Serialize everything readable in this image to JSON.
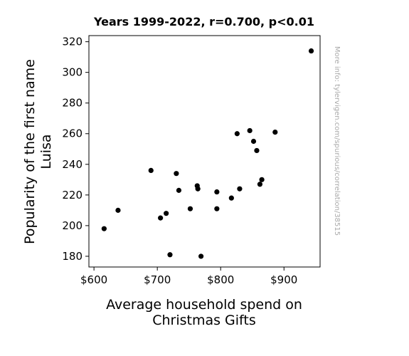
{
  "chart_data": {
    "type": "scatter",
    "title": "Years 1999-2022, r=0.700, p<0.01",
    "xlabel_lines": [
      "Average household spend on",
      "Christmas Gifts"
    ],
    "ylabel_lines": [
      "Popularity of the first name",
      "Luisa"
    ],
    "side_note": "More info: tylervigen.com/spurious/correlation/38515",
    "xlim": [
      592,
      957
    ],
    "ylim": [
      173,
      324
    ],
    "xticks": [
      600,
      700,
      800,
      900
    ],
    "xtick_labels": [
      "$600",
      "$700",
      "$800",
      "$900"
    ],
    "yticks": [
      180,
      200,
      220,
      240,
      260,
      280,
      300,
      320
    ],
    "ytick_labels": [
      "180",
      "200",
      "220",
      "240",
      "260",
      "280",
      "300",
      "320"
    ],
    "grid": false,
    "point_color": "#000000",
    "points": [
      {
        "x": 616,
        "y": 198
      },
      {
        "x": 638,
        "y": 210
      },
      {
        "x": 690,
        "y": 236
      },
      {
        "x": 705,
        "y": 205
      },
      {
        "x": 714,
        "y": 208
      },
      {
        "x": 720,
        "y": 181
      },
      {
        "x": 730,
        "y": 234
      },
      {
        "x": 734,
        "y": 223
      },
      {
        "x": 752,
        "y": 211
      },
      {
        "x": 763,
        "y": 226
      },
      {
        "x": 764,
        "y": 224
      },
      {
        "x": 769,
        "y": 180
      },
      {
        "x": 794,
        "y": 222
      },
      {
        "x": 794,
        "y": 211
      },
      {
        "x": 817,
        "y": 218
      },
      {
        "x": 826,
        "y": 260
      },
      {
        "x": 830,
        "y": 224
      },
      {
        "x": 846,
        "y": 262
      },
      {
        "x": 852,
        "y": 255
      },
      {
        "x": 857,
        "y": 249
      },
      {
        "x": 862,
        "y": 227
      },
      {
        "x": 865,
        "y": 230
      },
      {
        "x": 886,
        "y": 261
      },
      {
        "x": 943,
        "y": 314
      }
    ]
  }
}
